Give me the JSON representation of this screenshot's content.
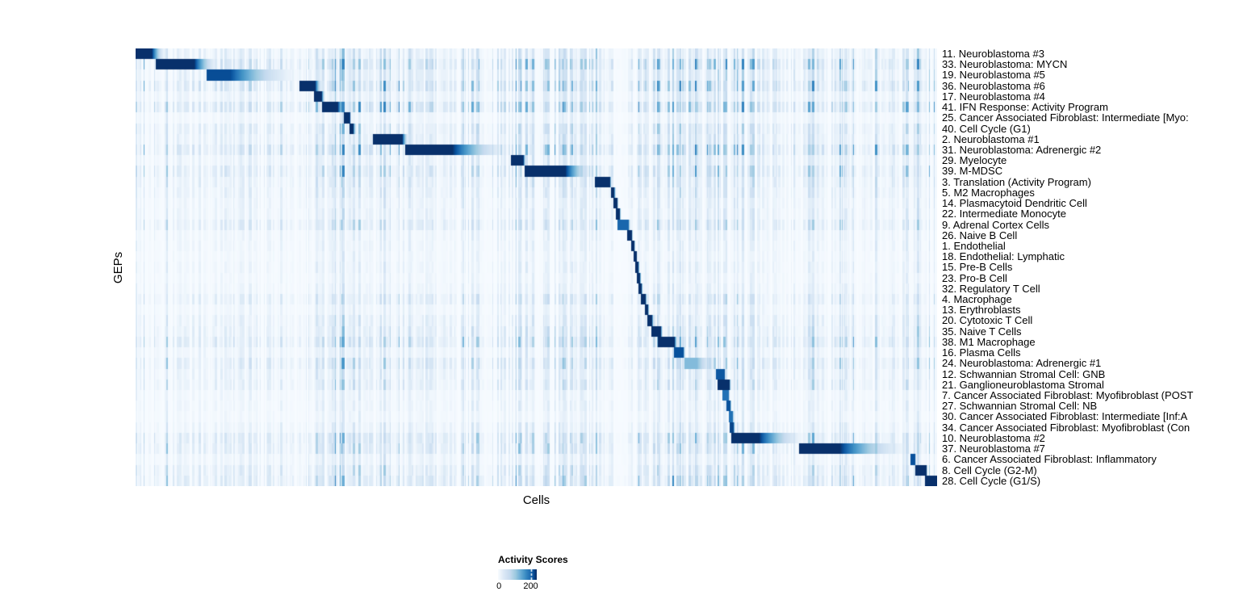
{
  "chart_data": {
    "type": "heatmap",
    "xlabel": "Cells",
    "ylabel": "GEPs",
    "legend": {
      "title": "Activity Scores",
      "ticks": [
        {
          "value": 0,
          "label": "0"
        },
        {
          "value": 200,
          "label": "200"
        }
      ],
      "score_domain": [
        0,
        237
      ]
    },
    "colormap_stops": [
      [
        0.0,
        "#F7FBFF"
      ],
      [
        0.13,
        "#DEEBF7"
      ],
      [
        0.31,
        "#C6DBEF"
      ],
      [
        0.45,
        "#9ECAE1"
      ],
      [
        0.58,
        "#6BAED6"
      ],
      [
        0.7,
        "#4292C6"
      ],
      [
        0.82,
        "#2171B5"
      ],
      [
        0.92,
        "#08519C"
      ],
      [
        1.0,
        "#08306B"
      ]
    ],
    "grid": false,
    "rows": [
      {
        "label": "11. Neuroblastoma #3",
        "block": {
          "start": 0.0,
          "core": 0.02,
          "end": 0.038,
          "peak": 1.0
        },
        "noise": 0.3
      },
      {
        "label": "33. Neuroblastoma: MYCN",
        "block": {
          "start": 0.026,
          "core": 0.073,
          "end": 0.105,
          "peak": 1.0
        },
        "noise": 0.55
      },
      {
        "label": "19. Neuroblastoma #5",
        "block": {
          "start": 0.089,
          "core": 0.118,
          "end": 0.207,
          "peak": 0.93
        },
        "noise": 0.35
      },
      {
        "label": "36. Neuroblastoma #6",
        "block": {
          "start": 0.2054,
          "core": 0.2236,
          "end": 0.2336,
          "peak": 1.0
        },
        "noise": 0.55
      },
      {
        "label": "17. Neuroblastoma #4",
        "block": {
          "start": 0.2226,
          "core": 0.2316,
          "end": 0.2366,
          "peak": 1.0
        },
        "noise": 0.25
      },
      {
        "label": "41. IFN Response: Activity Program",
        "block": {
          "start": 0.2336,
          "core": 0.2517,
          "end": 0.2638,
          "peak": 1.0
        },
        "noise": 0.6
      },
      {
        "label": "25. Cancer Associated Fibroblast: Intermediate [Myo:",
        "block": {
          "start": 0.2608,
          "core": 0.2668,
          "end": 0.2689,
          "peak": 1.0
        },
        "noise": 0.15
      },
      {
        "label": "40. Cell Cycle (G1)",
        "block": {
          "start": 0.2669,
          "core": 0.2709,
          "end": 0.276,
          "peak": 1.0
        },
        "noise": 0.35
      },
      {
        "label": "2. Neuroblastoma #1",
        "block": {
          "start": 0.297,
          "core": 0.3323,
          "end": 0.3414,
          "peak": 1.0
        },
        "noise": 0.3
      },
      {
        "label": "31. Neuroblastoma: Adrenergic #2",
        "block": {
          "start": 0.3364,
          "core": 0.3949,
          "end": 0.4703,
          "peak": 1.0
        },
        "noise": 0.55
      },
      {
        "label": "29. Myelocyte",
        "block": {
          "start": 0.4683,
          "core": 0.4833,
          "end": 0.4874,
          "peak": 1.0
        },
        "noise": 0.25
      },
      {
        "label": "39. M-MDSC",
        "block": {
          "start": 0.4854,
          "core": 0.5358,
          "end": 0.5731,
          "peak": 1.0
        },
        "noise": 0.45
      },
      {
        "label": "3. Translation (Activity Program)",
        "block": {
          "start": 0.574,
          "core": 0.5912,
          "end": 0.5942,
          "peak": 1.0
        },
        "noise": 0.3
      },
      {
        "label": "5. M2 Macrophages",
        "block": {
          "start": 0.5932,
          "core": 0.5965,
          "end": 0.5995,
          "peak": 1.0
        },
        "noise": 0.25
      },
      {
        "label": "14. Plasmacytoid Dendritic Cell",
        "block": {
          "start": 0.5962,
          "core": 0.6002,
          "end": 0.6025,
          "peak": 1.0
        },
        "noise": 0.2
      },
      {
        "label": "22. Intermediate Monocyte",
        "block": {
          "start": 0.5995,
          "core": 0.6035,
          "end": 0.6055,
          "peak": 1.0
        },
        "noise": 0.2
      },
      {
        "label": "9. Adrenal Cortex Cells",
        "block": {
          "start": 0.6022,
          "core": 0.6143,
          "end": 0.6175,
          "peak": 0.85
        },
        "noise": 0.35
      },
      {
        "label": "26. Naive B Cell",
        "block": {
          "start": 0.6143,
          "core": 0.6185,
          "end": 0.6205,
          "peak": 1.0
        },
        "noise": 0.15
      },
      {
        "label": "1. Endothelial",
        "block": {
          "start": 0.6185,
          "core": 0.6215,
          "end": 0.6235,
          "peak": 1.0
        },
        "noise": 0.15
      },
      {
        "label": "18. Endothelial: Lymphatic",
        "block": {
          "start": 0.6215,
          "core": 0.6245,
          "end": 0.6258,
          "peak": 1.0
        },
        "noise": 0.12
      },
      {
        "label": "15. Pre-B Cells",
        "block": {
          "start": 0.6238,
          "core": 0.6268,
          "end": 0.6288,
          "peak": 1.0
        },
        "noise": 0.15
      },
      {
        "label": "23. Pro-B Cell",
        "block": {
          "start": 0.6258,
          "core": 0.6288,
          "end": 0.6308,
          "peak": 1.0
        },
        "noise": 0.12
      },
      {
        "label": "32. Regulatory T Cell",
        "block": {
          "start": 0.6278,
          "core": 0.6308,
          "end": 0.6328,
          "peak": 1.0
        },
        "noise": 0.15
      },
      {
        "label": "4. Macrophage",
        "block": {
          "start": 0.6308,
          "core": 0.6358,
          "end": 0.6378,
          "peak": 1.0
        },
        "noise": 0.3
      },
      {
        "label": "13. Erythroblasts",
        "block": {
          "start": 0.6358,
          "core": 0.6388,
          "end": 0.6408,
          "peak": 1.0
        },
        "noise": 0.15
      },
      {
        "label": "20. Cytotoxic T Cell",
        "block": {
          "start": 0.6388,
          "core": 0.6438,
          "end": 0.6468,
          "peak": 1.0
        },
        "noise": 0.25
      },
      {
        "label": "35. Naive T Cells",
        "block": {
          "start": 0.6438,
          "core": 0.6548,
          "end": 0.6578,
          "peak": 1.0
        },
        "noise": 0.3
      },
      {
        "label": "38. M1 Macrophage",
        "block": {
          "start": 0.6518,
          "core": 0.6718,
          "end": 0.6768,
          "peak": 1.0
        },
        "noise": 0.45
      },
      {
        "label": "16. Plasma Cells",
        "block": {
          "start": 0.6718,
          "core": 0.6829,
          "end": 0.6859,
          "peak": 0.92
        },
        "noise": 0.2
      },
      {
        "label": "24. Neuroblastoma: Adrenergic #1",
        "block": {
          "start": 0.6849,
          "core": 0.7,
          "end": 0.7251,
          "peak": 0.52
        },
        "noise": 0.4
      },
      {
        "label": "12. Schwannian Stromal Cell: GNB",
        "block": {
          "start": 0.7241,
          "core": 0.7342,
          "end": 0.7362,
          "peak": 0.9
        },
        "noise": 0.25
      },
      {
        "label": "21. Ganglioneuroblastoma Stromal",
        "block": {
          "start": 0.7261,
          "core": 0.7402,
          "end": 0.7432,
          "peak": 1.0
        },
        "noise": 0.3
      },
      {
        "label": "7. Cancer Associated Fibroblast: Myofibroblast (POST",
        "block": {
          "start": 0.7322,
          "core": 0.7392,
          "end": 0.7415,
          "peak": 0.82
        },
        "noise": 0.15
      },
      {
        "label": "27. Schwannian Stromal Cell: NB",
        "block": {
          "start": 0.7372,
          "core": 0.7415,
          "end": 0.7435,
          "peak": 0.92
        },
        "noise": 0.15
      },
      {
        "label": "30. Cancer Associated Fibroblast: Intermediate [Inf:A",
        "block": {
          "start": 0.7402,
          "core": 0.7445,
          "end": 0.7465,
          "peak": 0.82
        },
        "noise": 0.12
      },
      {
        "label": "34. Cancer Associated Fibroblast: Myofibroblast (Con",
        "block": {
          "start": 0.7415,
          "core": 0.7455,
          "end": 0.7482,
          "peak": 0.95
        },
        "noise": 0.2
      },
      {
        "label": "10. Neuroblastoma #2",
        "block": {
          "start": 0.7442,
          "core": 0.7775,
          "end": 0.8379,
          "peak": 1.0
        },
        "noise": 0.45
      },
      {
        "label": "37. Neuroblastoma #7",
        "block": {
          "start": 0.8278,
          "core": 0.8782,
          "end": 0.9688,
          "peak": 1.0
        },
        "noise": 0.4
      },
      {
        "label": "6. Cancer Associated Fibroblast: Inflammatory",
        "block": {
          "start": 0.9668,
          "core": 0.9718,
          "end": 0.974,
          "peak": 0.92
        },
        "noise": 0.2
      },
      {
        "label": "8. Cell Cycle (G2-M)",
        "block": {
          "start": 0.9738,
          "core": 0.9859,
          "end": 0.9882,
          "peak": 1.0
        },
        "noise": 0.35
      },
      {
        "label": "28. Cell Cycle (G1/S)",
        "block": {
          "start": 0.9859,
          "core": 1.0,
          "end": 1.0,
          "peak": 1.0
        },
        "noise": 0.45
      }
    ],
    "noise_texture": {
      "seed": 123456,
      "base_band": 0.65,
      "bands": [
        {
          "from": 0.0,
          "to": 0.04,
          "mul": 1.2
        },
        {
          "from": 0.225,
          "to": 0.28,
          "mul": 1.7
        },
        {
          "from": 0.29,
          "to": 0.35,
          "mul": 1.3
        },
        {
          "from": 0.4,
          "to": 0.47,
          "mul": 1.1
        },
        {
          "from": 0.47,
          "to": 0.6,
          "mul": 1.5
        },
        {
          "from": 0.62,
          "to": 0.78,
          "mul": 1.5
        },
        {
          "from": 0.84,
          "to": 0.93,
          "mul": 1.3
        },
        {
          "from": 0.955,
          "to": 1.0,
          "mul": 1.8
        }
      ]
    }
  }
}
